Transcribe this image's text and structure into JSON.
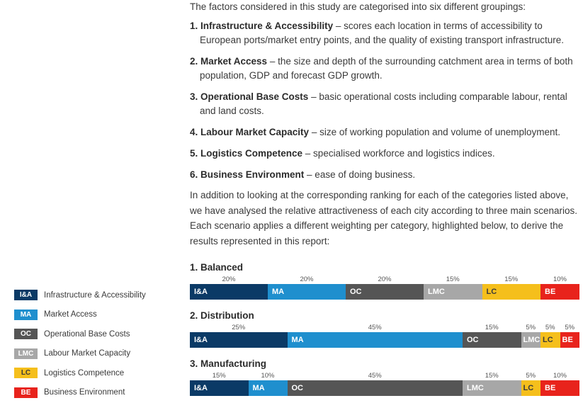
{
  "intro": "The factors considered in this study are categorised into six different groupings:",
  "factors": [
    {
      "num": "1.",
      "name": "Infrastructure & Accessibility",
      "desc": " – scores each location in terms of accessibility to European ports/market entry points, and the quality of existing transport infrastructure."
    },
    {
      "num": "2.",
      "name": "Market Access",
      "desc": " – the size and depth of the surrounding catchment area in terms of both population, GDP and forecast GDP growth."
    },
    {
      "num": "3.",
      "name": "Operational Base Costs",
      "desc": " – basic operational costs including comparable labour, rental and land costs."
    },
    {
      "num": "4.",
      "name": "Labour Market Capacity",
      "desc": " – size of working population and volume of unemployment."
    },
    {
      "num": "5.",
      "name": "Logistics Competence",
      "desc": " – specialised workforce and logistics indices."
    },
    {
      "num": "6.",
      "name": "Business Environment",
      "desc": " – ease of doing business."
    }
  ],
  "paragraph": "In addition to looking at the corresponding ranking for each of the categories listed above, we have analysed the relative attractiveness of each city according to three main scenarios. Each scenario applies a different weighting per category, highlighted below, to derive the results represented in this report:",
  "categories": [
    {
      "code": "I&A",
      "label": "Infrastructure & Accessibility",
      "color": "#0b3a66",
      "text_color": "#ffffff"
    },
    {
      "code": "MA",
      "label": "Market Access",
      "color": "#1f8fce",
      "text_color": "#ffffff"
    },
    {
      "code": "OC",
      "label": "Operational Base Costs",
      "color": "#555555",
      "text_color": "#ffffff"
    },
    {
      "code": "LMC",
      "label": "Labour Market Capacity",
      "color": "#a7a7a7",
      "text_color": "#ffffff"
    },
    {
      "code": "LC",
      "label": "Logistics Competence",
      "color": "#f5bf1c",
      "text_color": "#3a3a3a"
    },
    {
      "code": "BE",
      "label": "Business Environment",
      "color": "#e8231c",
      "text_color": "#ffffff"
    }
  ],
  "chart_data": {
    "type": "bar",
    "stacked": "100%",
    "categories": [
      "I&A",
      "MA",
      "OC",
      "LMC",
      "LC",
      "BE"
    ],
    "series": [
      {
        "name": "1. Balanced",
        "values": [
          20,
          20,
          20,
          15,
          15,
          10
        ]
      },
      {
        "name": "2. Distribution",
        "values": [
          25,
          45,
          15,
          5,
          5,
          5
        ]
      },
      {
        "name": "3. Manufacturing",
        "values": [
          15,
          10,
          45,
          15,
          5,
          10
        ]
      }
    ],
    "value_suffix": "%"
  }
}
